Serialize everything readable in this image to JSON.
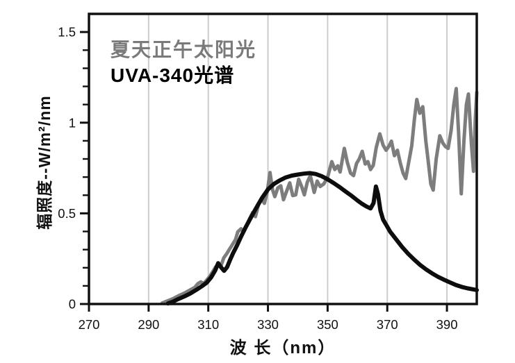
{
  "chart_data": {
    "type": "line",
    "title": "",
    "xlabel": "波 长（nm）",
    "ylabel": "辐照度--W/m²/nm",
    "xlim": [
      270,
      400
    ],
    "ylim": [
      0,
      1.6
    ],
    "x_ticks": [
      270,
      290,
      310,
      330,
      350,
      370,
      390
    ],
    "x_tick_labels": [
      "270",
      "290",
      "310",
      "330",
      "350",
      "370",
      "390"
    ],
    "y_major_ticks": [
      0,
      0.5,
      1,
      1.5
    ],
    "y_tick_labels": [
      "0",
      "0.5",
      "1",
      "1.5"
    ],
    "y_minor_step": 0.1,
    "grid": {
      "vertical_at_x_ticks": true,
      "horizontal": false,
      "color": "#cccccc"
    },
    "axis_color": "#111111",
    "legend": {
      "position": "top-left-inside",
      "items": [
        {
          "label": "夏天正午太阳光",
          "color": "#7a7a7a"
        },
        {
          "label": "UVA-340光谱",
          "color": "#000000"
        }
      ]
    },
    "series": [
      {
        "name": "夏天正午太阳光",
        "color": "#7d7d7d",
        "stroke_width": 5,
        "points": [
          [
            294.5,
            0.005
          ],
          [
            296,
            0.015
          ],
          [
            298,
            0.028
          ],
          [
            300,
            0.045
          ],
          [
            302,
            0.06
          ],
          [
            304,
            0.078
          ],
          [
            305.5,
            0.092
          ],
          [
            306.5,
            0.112
          ],
          [
            307.5,
            0.122
          ],
          [
            308.4,
            0.112
          ],
          [
            309.5,
            0.132
          ],
          [
            310.5,
            0.152
          ],
          [
            311.5,
            0.178
          ],
          [
            312.5,
            0.205
          ],
          [
            313.4,
            0.215
          ],
          [
            314.2,
            0.208
          ],
          [
            315.2,
            0.255
          ],
          [
            316.2,
            0.278
          ],
          [
            317.1,
            0.302
          ],
          [
            318.1,
            0.328
          ],
          [
            319.1,
            0.355
          ],
          [
            319.9,
            0.398
          ],
          [
            321,
            0.415
          ],
          [
            321.9,
            0.398
          ],
          [
            322.9,
            0.435
          ],
          [
            323.9,
            0.472
          ],
          [
            324.9,
            0.505
          ],
          [
            325.8,
            0.482
          ],
          [
            326.8,
            0.545
          ],
          [
            327.8,
            0.582
          ],
          [
            328.8,
            0.555
          ],
          [
            329.8,
            0.622
          ],
          [
            330.7,
            0.725
          ],
          [
            331.5,
            0.632
          ],
          [
            332.3,
            0.592
          ],
          [
            333.3,
            0.64
          ],
          [
            334.3,
            0.652
          ],
          [
            335.2,
            0.575
          ],
          [
            336.2,
            0.62
          ],
          [
            337.3,
            0.668
          ],
          [
            338.3,
            0.598
          ],
          [
            339.3,
            0.602
          ],
          [
            340.3,
            0.688
          ],
          [
            341.3,
            0.648
          ],
          [
            342.2,
            0.602
          ],
          [
            343.2,
            0.672
          ],
          [
            344.2,
            0.708
          ],
          [
            345.5,
            0.615
          ],
          [
            346.5,
            0.678
          ],
          [
            347.5,
            0.648
          ],
          [
            348.7,
            0.662
          ],
          [
            350,
            0.7
          ],
          [
            351.4,
            0.785
          ],
          [
            352.4,
            0.742
          ],
          [
            353.4,
            0.762
          ],
          [
            354.2,
            0.728
          ],
          [
            355.6,
            0.858
          ],
          [
            356.6,
            0.782
          ],
          [
            357.7,
            0.722
          ],
          [
            358.7,
            0.708
          ],
          [
            359.7,
            0.775
          ],
          [
            360.6,
            0.8
          ],
          [
            361.6,
            0.842
          ],
          [
            362.6,
            0.772
          ],
          [
            363.5,
            0.785
          ],
          [
            364.4,
            0.742
          ],
          [
            365.3,
            0.765
          ],
          [
            366.3,
            0.862
          ],
          [
            367.5,
            0.938
          ],
          [
            368.6,
            0.876
          ],
          [
            369.6,
            0.848
          ],
          [
            370.6,
            0.872
          ],
          [
            371.4,
            0.898
          ],
          [
            372.4,
            0.818
          ],
          [
            373.4,
            0.848
          ],
          [
            374.4,
            0.775
          ],
          [
            375.3,
            0.722
          ],
          [
            376.2,
            0.692
          ],
          [
            377.2,
            0.782
          ],
          [
            378.2,
            0.872
          ],
          [
            379.1,
            1.02
          ],
          [
            379.9,
            1.128
          ],
          [
            380.9,
            1.052
          ],
          [
            381.9,
            1.088
          ],
          [
            382.9,
            0.902
          ],
          [
            383.7,
            0.792
          ],
          [
            384.6,
            0.662
          ],
          [
            385.4,
            0.628
          ],
          [
            386.4,
            0.8
          ],
          [
            387.6,
            0.928
          ],
          [
            388.6,
            0.888
          ],
          [
            389.5,
            0.868
          ],
          [
            390.4,
            0.858
          ],
          [
            391.4,
            0.958
          ],
          [
            392.3,
            1.098
          ],
          [
            393.1,
            1.188
          ],
          [
            393.9,
            0.948
          ],
          [
            394.8,
            0.608
          ],
          [
            395.7,
            0.898
          ],
          [
            396.5,
            1.098
          ],
          [
            397.2,
            1.158
          ],
          [
            398.2,
            0.882
          ],
          [
            398.9,
            0.732
          ],
          [
            399.5,
            1.02
          ],
          [
            400,
            1.168
          ]
        ]
      },
      {
        "name": "UVA-340光谱",
        "color": "#0d0d0d",
        "stroke_width": 6,
        "points": [
          [
            296.5,
            0.003
          ],
          [
            298,
            0.012
          ],
          [
            300,
            0.028
          ],
          [
            302,
            0.042
          ],
          [
            304,
            0.058
          ],
          [
            306,
            0.078
          ],
          [
            308,
            0.1
          ],
          [
            309.5,
            0.118
          ],
          [
            311,
            0.148
          ],
          [
            312.3,
            0.185
          ],
          [
            313.3,
            0.225
          ],
          [
            314.3,
            0.202
          ],
          [
            315.3,
            0.183
          ],
          [
            316.3,
            0.203
          ],
          [
            317.3,
            0.243
          ],
          [
            318.3,
            0.28
          ],
          [
            319.6,
            0.322
          ],
          [
            321,
            0.372
          ],
          [
            322.5,
            0.422
          ],
          [
            324,
            0.468
          ],
          [
            326,
            0.528
          ],
          [
            328,
            0.585
          ],
          [
            330,
            0.632
          ],
          [
            332,
            0.662
          ],
          [
            334,
            0.682
          ],
          [
            336,
            0.698
          ],
          [
            338,
            0.708
          ],
          [
            340,
            0.714
          ],
          [
            342,
            0.719
          ],
          [
            344,
            0.722
          ],
          [
            346,
            0.717
          ],
          [
            348,
            0.705
          ],
          [
            350,
            0.688
          ],
          [
            352,
            0.667
          ],
          [
            354,
            0.645
          ],
          [
            356,
            0.621
          ],
          [
            358,
            0.597
          ],
          [
            360,
            0.571
          ],
          [
            361.5,
            0.553
          ],
          [
            363,
            0.538
          ],
          [
            364.4,
            0.527
          ],
          [
            365.4,
            0.557
          ],
          [
            366.2,
            0.648
          ],
          [
            366.9,
            0.605
          ],
          [
            367.7,
            0.515
          ],
          [
            368.6,
            0.466
          ],
          [
            369.6,
            0.438
          ],
          [
            371,
            0.398
          ],
          [
            373,
            0.356
          ],
          [
            375,
            0.314
          ],
          [
            377,
            0.277
          ],
          [
            379,
            0.245
          ],
          [
            381,
            0.216
          ],
          [
            383,
            0.191
          ],
          [
            385,
            0.169
          ],
          [
            387,
            0.15
          ],
          [
            389,
            0.134
          ],
          [
            391,
            0.119
          ],
          [
            393,
            0.105
          ],
          [
            395,
            0.094
          ],
          [
            397,
            0.086
          ],
          [
            399,
            0.08
          ],
          [
            400,
            0.077
          ]
        ]
      }
    ]
  }
}
